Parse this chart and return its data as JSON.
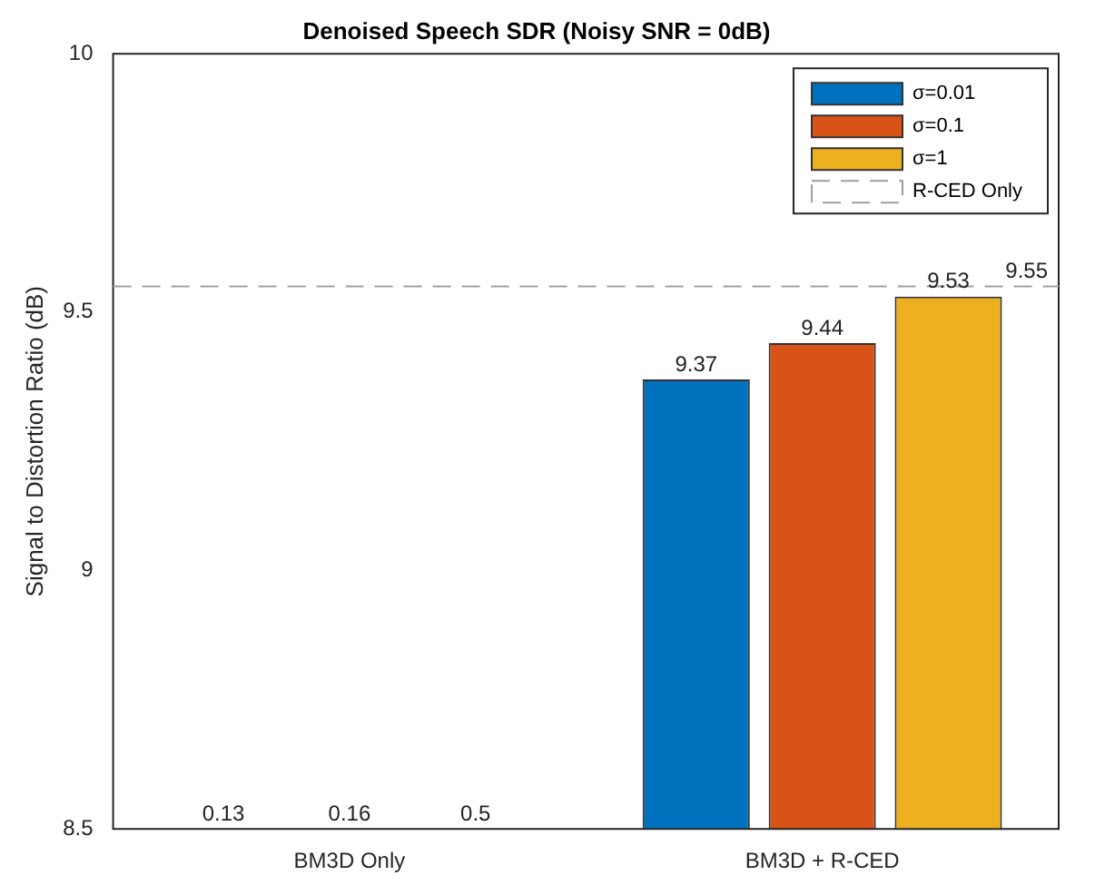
{
  "chart_data": {
    "type": "bar",
    "title": "Denoised Speech SDR (Noisy SNR = 0dB)",
    "ylabel": "Signal to Distortion Ratio (dB)",
    "categories": [
      "BM3D Only",
      "BM3D + R-CED"
    ],
    "series": [
      {
        "name": "σ=0.01",
        "color": "#0072bd",
        "values": [
          null,
          9.37
        ],
        "value_labels": [
          "0.13",
          "9.37"
        ]
      },
      {
        "name": "σ=0.1",
        "color": "#d95319",
        "values": [
          null,
          9.44
        ],
        "value_labels": [
          "0.16",
          "9.44"
        ]
      },
      {
        "name": "σ=1",
        "color": "#edb120",
        "values": [
          null,
          9.53
        ],
        "value_labels": [
          "0.5",
          "9.53"
        ]
      }
    ],
    "ylim": [
      8.5,
      10
    ],
    "yticks": [
      8.5,
      9,
      9.5,
      10
    ],
    "ref_lines": [
      {
        "axis": "y",
        "value": 9.55,
        "label": "R-CED Only",
        "color": "#a0a0a0",
        "line_style": "dashed"
      }
    ],
    "annotations": [
      {
        "text": "9.55",
        "y": 9.55
      }
    ],
    "legend": "top right",
    "grid": false
  }
}
